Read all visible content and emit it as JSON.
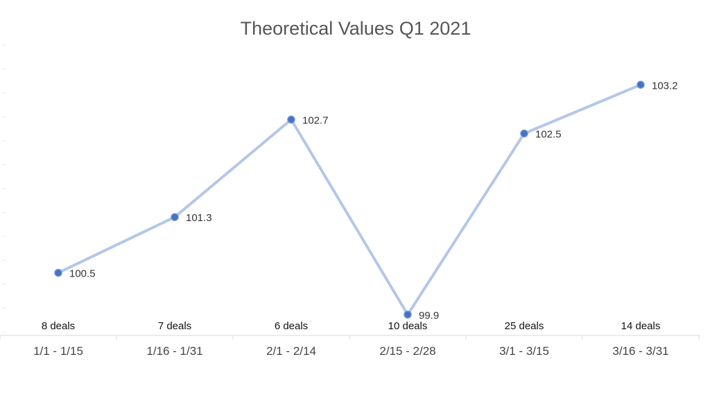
{
  "chart_data": {
    "type": "line",
    "title": "Theoretical Values Q1 2021",
    "xlabel": "",
    "ylabel": "",
    "categories": [
      "1/1 - 1/15",
      "1/16 - 1/31",
      "2/1 - 2/14",
      "2/15 - 2/28",
      "3/1 - 3/15",
      "3/16 - 3/31"
    ],
    "deal_counts": [
      "8 deals",
      "7 deals",
      "6 deals",
      "10 deals",
      "25 deals",
      "14 deals"
    ],
    "values": [
      100.5,
      101.3,
      102.7,
      99.9,
      102.5,
      103.2
    ],
    "data_labels": [
      "100.5",
      "101.3",
      "102.7",
      "99.9",
      "102.5",
      "103.2"
    ],
    "ylim": [
      99.6,
      103.8
    ],
    "grid": false,
    "legend": "none",
    "colors": {
      "line": "#b4c7e7",
      "marker": "#4472c4",
      "marker_stroke": "#6f93d4",
      "axis": "#d9d9d9",
      "title": "#555555"
    }
  }
}
